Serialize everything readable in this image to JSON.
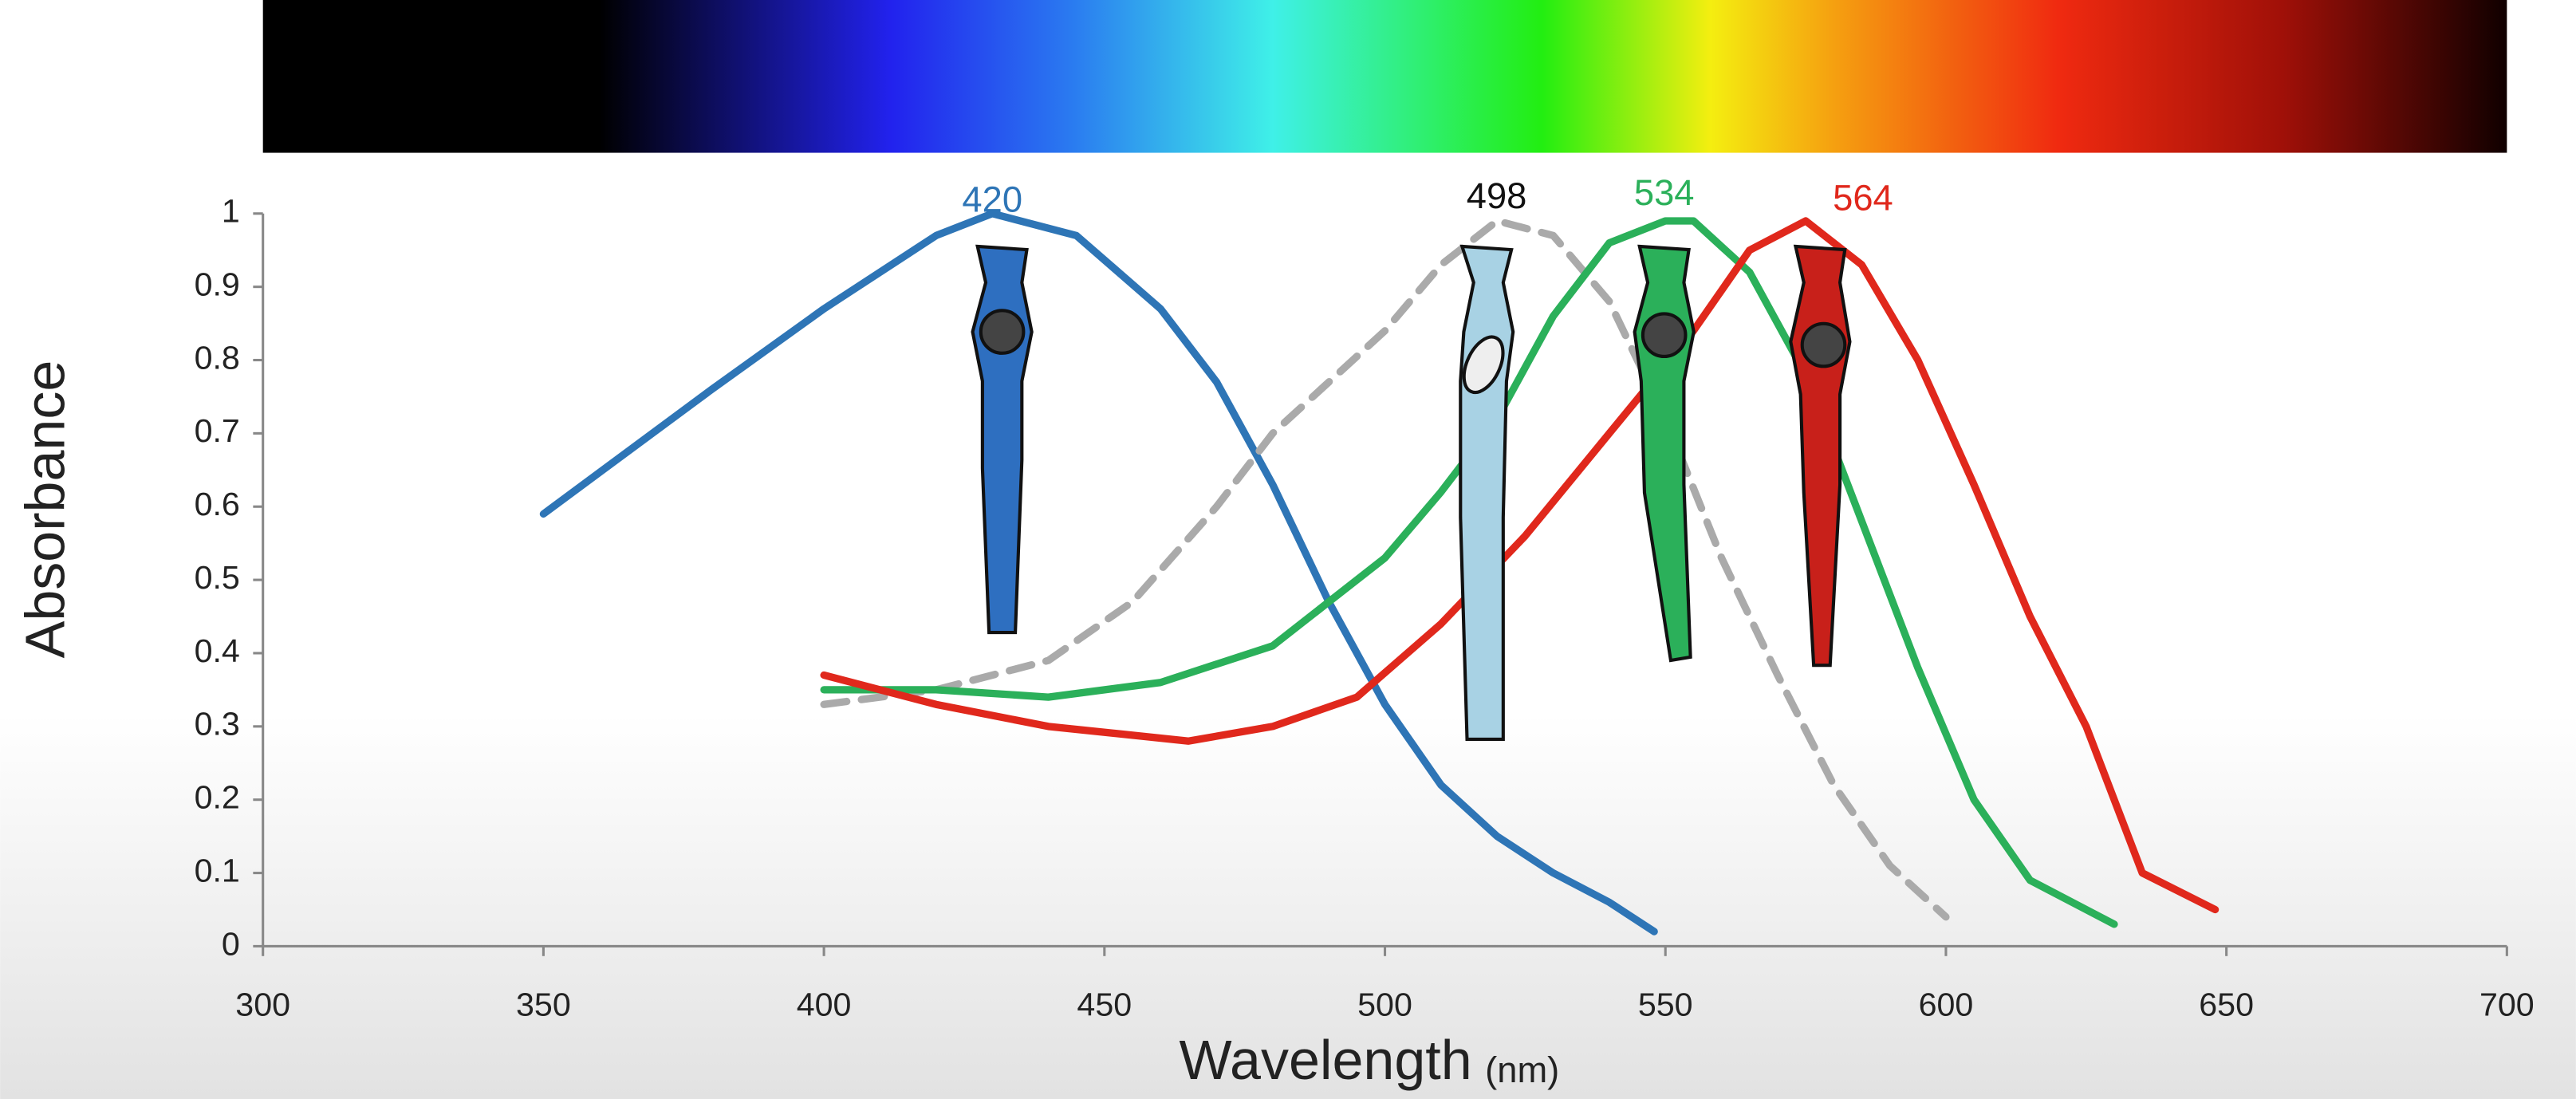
{
  "chart_data": {
    "type": "line",
    "x_label": "Wavelength",
    "x_unit": "(nm)",
    "y_label": "Absorbance",
    "xlim": [
      300,
      700
    ],
    "ylim": [
      0,
      1
    ],
    "xticks": [
      300,
      350,
      400,
      450,
      500,
      550,
      600,
      650,
      700
    ],
    "yticks": [
      0,
      0.1,
      0.2,
      0.3,
      0.4,
      0.5,
      0.6,
      0.7,
      0.8,
      0.9,
      1
    ],
    "annotations": [
      {
        "text": "420",
        "color": "#2e75b6"
      },
      {
        "text": "498",
        "color": "#111111"
      },
      {
        "text": "534",
        "color": "#2bb05a"
      },
      {
        "text": "564",
        "color": "#e0281c"
      }
    ],
    "series": [
      {
        "color": "#2e75b6",
        "dashed": false,
        "x": [
          350,
          380,
          400,
          420,
          430,
          445,
          460,
          470,
          480,
          490,
          500,
          510,
          520,
          530,
          540,
          548
        ],
        "values": [
          0.59,
          0.76,
          0.87,
          0.97,
          1.0,
          0.97,
          0.87,
          0.77,
          0.63,
          0.47,
          0.33,
          0.22,
          0.15,
          0.1,
          0.06,
          0.02
        ]
      },
      {
        "color": "#aaaaaa",
        "dashed": true,
        "x": [
          400,
          420,
          440,
          455,
          470,
          480,
          490,
          500,
          510,
          520,
          530,
          540,
          550,
          560,
          570,
          580,
          590,
          600
        ],
        "values": [
          0.33,
          0.35,
          0.39,
          0.47,
          0.6,
          0.7,
          0.77,
          0.84,
          0.93,
          0.99,
          0.97,
          0.88,
          0.72,
          0.53,
          0.37,
          0.22,
          0.11,
          0.04
        ]
      },
      {
        "color": "#2bb05a",
        "dashed": false,
        "x": [
          400,
          420,
          440,
          460,
          480,
          500,
          510,
          520,
          530,
          540,
          550,
          555,
          565,
          575,
          585,
          595,
          605,
          615,
          630
        ],
        "values": [
          0.35,
          0.35,
          0.34,
          0.36,
          0.41,
          0.53,
          0.62,
          0.72,
          0.86,
          0.96,
          0.99,
          0.99,
          0.92,
          0.78,
          0.58,
          0.38,
          0.2,
          0.09,
          0.03
        ]
      },
      {
        "color": "#e0281c",
        "dashed": false,
        "x": [
          400,
          420,
          440,
          465,
          480,
          495,
          510,
          525,
          540,
          555,
          565,
          575,
          585,
          595,
          605,
          615,
          625,
          635,
          648
        ],
        "values": [
          0.37,
          0.33,
          0.3,
          0.28,
          0.3,
          0.34,
          0.44,
          0.56,
          0.7,
          0.84,
          0.95,
          0.99,
          0.93,
          0.8,
          0.63,
          0.45,
          0.3,
          0.1,
          0.05
        ]
      }
    ]
  }
}
